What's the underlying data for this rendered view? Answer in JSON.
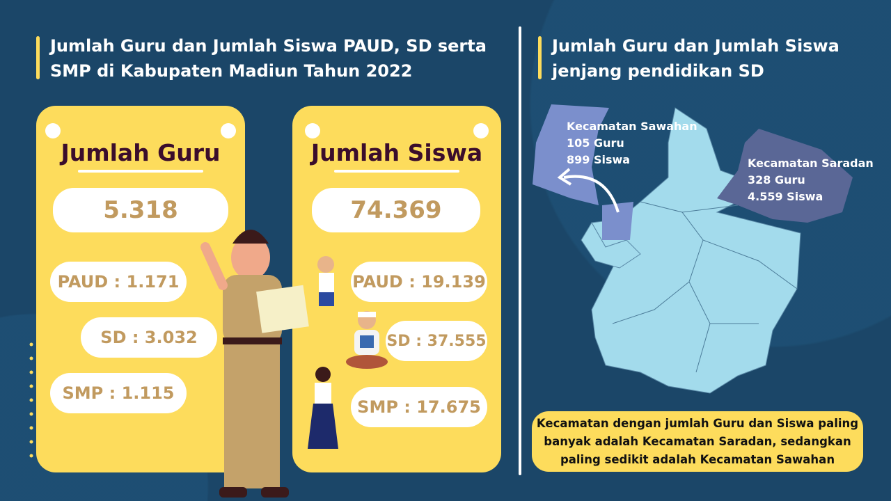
{
  "left_title": "Jumlah Guru dan Jumlah Siswa PAUD, SD serta SMP di Kabupaten Madiun Tahun 2022",
  "right_title": "Jumlah Guru dan Jumlah Siswa jenjang pendidikan SD",
  "guru": {
    "heading": "Jumlah Guru",
    "total": "5.318",
    "paud": "PAUD : 1.171",
    "sd": "SD : 3.032",
    "smp": "SMP : 1.115"
  },
  "siswa": {
    "heading": "Jumlah Siswa",
    "total": "74.369",
    "paud": "PAUD : 19.139",
    "sd": "SD : 37.555",
    "smp": "SMP : 17.675"
  },
  "map": {
    "sawahan": {
      "name": "Kecamatan Sawahan",
      "guru": "105 Guru",
      "siswa": "899 Siswa"
    },
    "saradan": {
      "name": "Kecamatan Saradan",
      "guru": "328 Guru",
      "siswa": "4.559 Siswa"
    }
  },
  "note": "Kecamatan dengan jumlah Guru dan Siswa paling banyak adalah Kecamatan Saradan, sedangkan paling sedikit adalah Kecamatan Sawahan",
  "colors": {
    "background": "#1b4668",
    "card": "#fddc5c",
    "map_base": "#a3dbec",
    "sawahan": "#7b8fcc",
    "saradan": "#5a6796",
    "number": "#c19a5f"
  }
}
